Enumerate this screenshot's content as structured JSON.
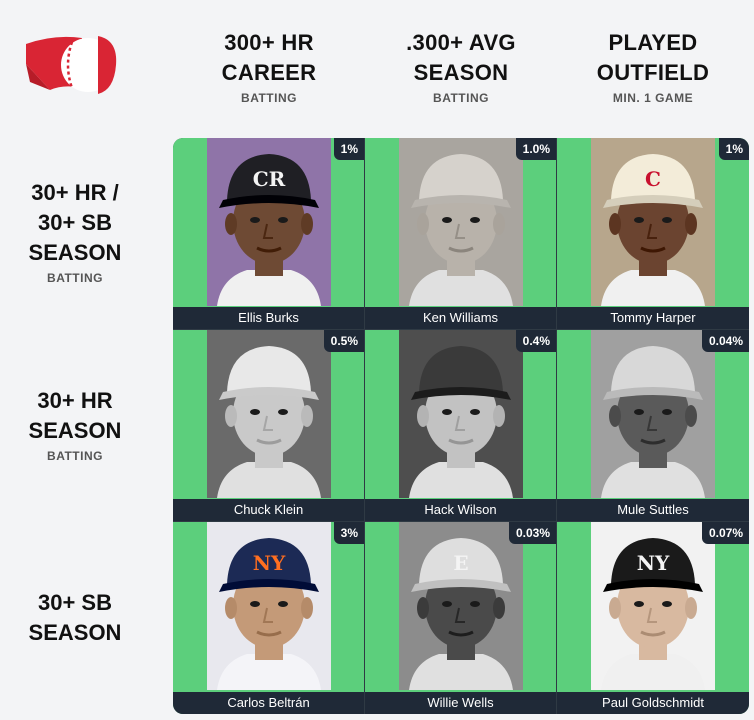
{
  "columns": [
    {
      "title_l1": "300+ HR",
      "title_l2": "CAREER",
      "sub": "BATTING"
    },
    {
      "title_l1": ".300+ AVG",
      "title_l2": "SEASON",
      "sub": "BATTING"
    },
    {
      "title_l1": "PLAYED",
      "title_l2": "OUTFIELD",
      "sub": "MIN. 1 GAME"
    }
  ],
  "rows": [
    {
      "l1": "30+ HR /",
      "l2": "30+ SB",
      "l3": "SEASON",
      "sub": "BATTING"
    },
    {
      "l1": "30+ HR",
      "l2": "SEASON",
      "sub": "BATTING"
    },
    {
      "l1": "30+ SB",
      "l2": "SEASON",
      "sub": ""
    }
  ],
  "cells": [
    {
      "player": "Ellis Burks",
      "pct": "1%",
      "cap_logo": "CR",
      "cap_color": "#1f1f24",
      "skin": "#6e4a34",
      "bg": "#8f74a8",
      "bw": false
    },
    {
      "player": "Ken Williams",
      "pct": "1.0%",
      "cap_logo": "",
      "cap_color": "#d6d2cc",
      "skin": "#b8b2aa",
      "bg": "#a9a59f",
      "bw": true
    },
    {
      "player": "Tommy Harper",
      "pct": "1%",
      "cap_logo": "C",
      "cap_color": "#f3ecd9",
      "skin": "#6b4430",
      "bg": "#b7a68c",
      "bw": false
    },
    {
      "player": "Chuck Klein",
      "pct": "0.5%",
      "cap_logo": "",
      "cap_color": "#e8e8e8",
      "skin": "#c9c9c9",
      "bg": "#6a6a6a",
      "bw": true
    },
    {
      "player": "Hack Wilson",
      "pct": "0.4%",
      "cap_logo": "",
      "cap_color": "#3a3a3a",
      "skin": "#c2c2c2",
      "bg": "#4e4e4e",
      "bw": true
    },
    {
      "player": "Mule Suttles",
      "pct": "0.04%",
      "cap_logo": "",
      "cap_color": "#d8d8d8",
      "skin": "#5a5a5a",
      "bg": "#a0a0a0",
      "bw": true
    },
    {
      "player": "Carlos Beltrán",
      "pct": "3%",
      "cap_logo": "NY",
      "cap_color": "#1c2a55",
      "skin": "#c49a78",
      "bg": "#e8e8ee",
      "bw": false
    },
    {
      "player": "Willie Wells",
      "pct": "0.03%",
      "cap_logo": "E",
      "cap_color": "#dedede",
      "skin": "#4a4a4a",
      "bg": "#8c8c8c",
      "bw": true
    },
    {
      "player": "Paul Goldschmidt",
      "pct": "0.07%",
      "cap_logo": "NY",
      "cap_color": "#1a1a1a",
      "skin": "#d8b9a0",
      "bg": "#f2f2f2",
      "bw": false
    }
  ],
  "colors": {
    "cell_green": "#5ccf7c",
    "label_bar": "#1f2937",
    "logo_red": "#d92534"
  },
  "icons": {
    "logo": "baseball-flag-logo"
  }
}
